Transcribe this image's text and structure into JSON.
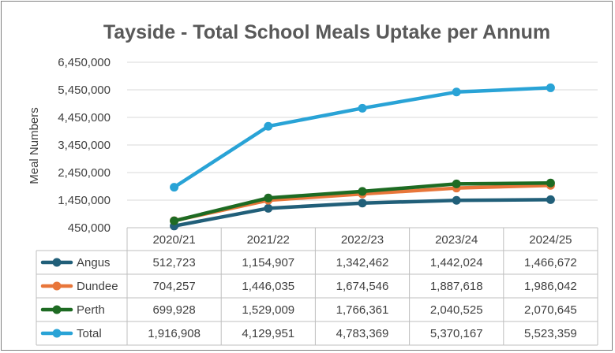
{
  "chart_data": {
    "type": "line",
    "title": "Tayside - Total School Meals Uptake per Annum",
    "xlabel": "",
    "ylabel": "Meal Numbers",
    "ylim": [
      450000,
      6450000
    ],
    "yticks": [
      "6,450,000",
      "5,450,000",
      "4,450,000",
      "3,450,000",
      "2,450,000",
      "1,450,000",
      "450,000"
    ],
    "tickValues": [
      6450000,
      5450000,
      4450000,
      3450000,
      2450000,
      1450000,
      450000
    ],
    "categories": [
      "2020/21",
      "2021/22",
      "2022/23",
      "2023/24",
      "2024/25"
    ],
    "legend_position": "bottom-table",
    "grid": true,
    "series": [
      {
        "name": "Angus",
        "color": "#215f79",
        "values": [
          512723,
          1154907,
          1342462,
          1442024,
          1466672
        ],
        "labels": [
          "512,723",
          "1,154,907",
          "1,342,462",
          "1,442,024",
          "1,466,672"
        ]
      },
      {
        "name": "Dundee",
        "color": "#e8763a",
        "values": [
          704257,
          1446035,
          1674546,
          1887618,
          1986042
        ],
        "labels": [
          "704,257",
          "1,446,035",
          "1,674,546",
          "1,887,618",
          "1,986,042"
        ]
      },
      {
        "name": "Perth",
        "color": "#1e6b23",
        "values": [
          699928,
          1529009,
          1766361,
          2040525,
          2070645
        ],
        "labels": [
          "699,928",
          "1,529,009",
          "1,766,361",
          "2,040,525",
          "2,070,645"
        ]
      },
      {
        "name": "Total",
        "color": "#29a3d6",
        "values": [
          1916908,
          4129951,
          4783369,
          5370167,
          5523359
        ],
        "labels": [
          "1,916,908",
          "4,129,951",
          "4,783,369",
          "5,370,167",
          "5,523,359"
        ]
      }
    ]
  }
}
